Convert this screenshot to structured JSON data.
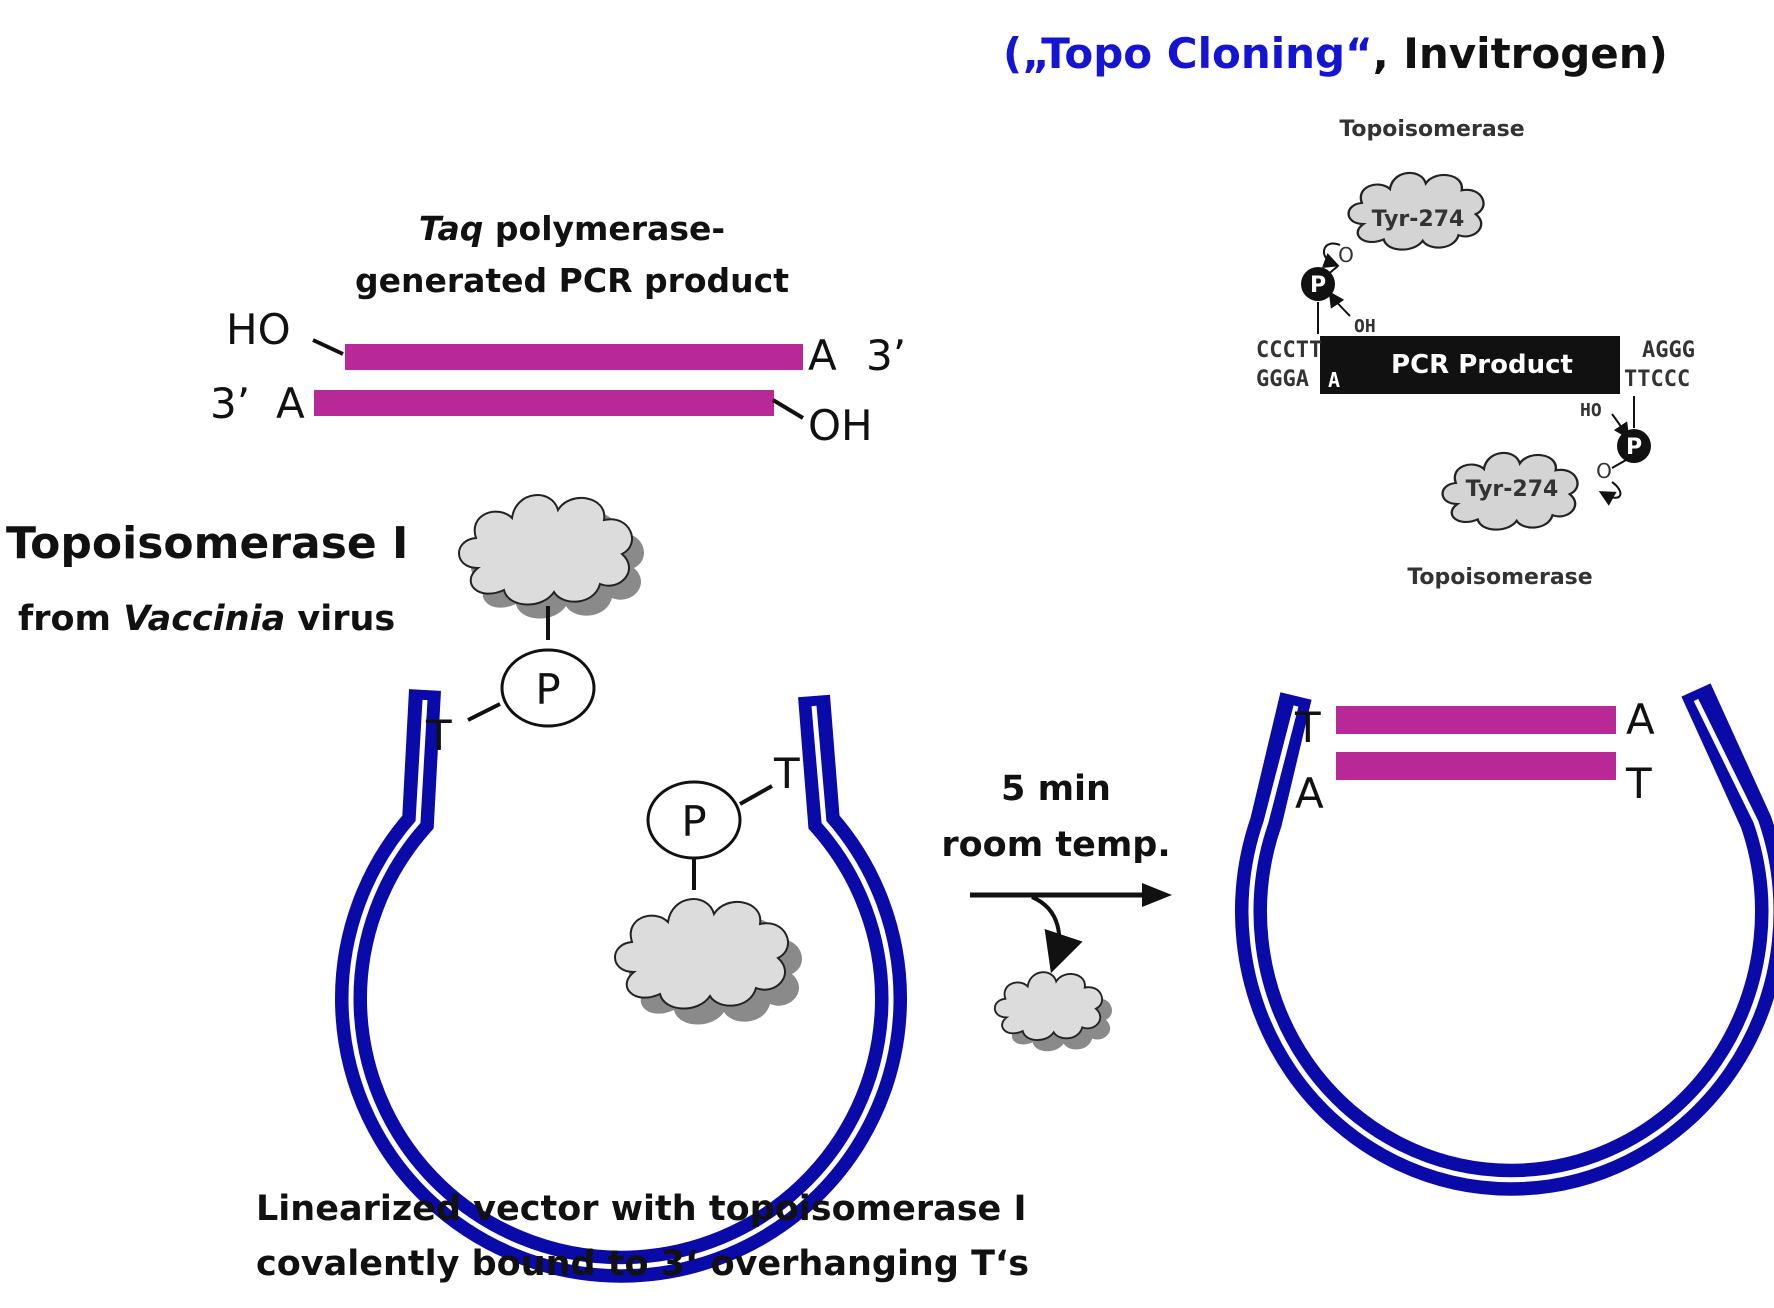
{
  "colors": {
    "vector_blue": "#0a0aa8",
    "pcr_magenta": "#b82896",
    "title_blue": "#1414d2",
    "cloud_fill": "#dcdcdc",
    "cloud_shadow": "#8a8a8a"
  },
  "title": {
    "open": "(„Topo Cloning“",
    "rest": ", Invitrogen)"
  },
  "pcr_label": {
    "italic": "Taq",
    "line1_rest": " polymerase-",
    "line2": "generated PCR product"
  },
  "pcr_ends": {
    "top_left": "HO",
    "top_right_base": "A",
    "top_right_end": "3’",
    "bottom_left_end": "3’",
    "bottom_left_base": "A",
    "bottom_right": "OH"
  },
  "enzyme_label": {
    "line1": "Topoisomerase I",
    "from": "from ",
    "italic": "Vaccinia",
    "virus": " virus"
  },
  "vector": {
    "overhang_left": "T",
    "overhang_right": "T",
    "phosphate": "P"
  },
  "reaction": {
    "line1": "5 min",
    "line2": "room temp."
  },
  "product": {
    "top_left": "T",
    "top_right": "A",
    "bottom_left": "A",
    "bottom_right": "T"
  },
  "caption": {
    "line1": "Linearized vector with topoisomerase I",
    "line2": "covalently bound to 3‘ overhanging T‘s"
  },
  "inset": {
    "topo_top": "Topoisomerase",
    "topo_bottom": "Topoisomerase",
    "tyr_top": "Tyr-274",
    "tyr_bottom": "Tyr-274",
    "o": "O",
    "oh": "OH",
    "ho": "HO",
    "p": "P",
    "left_top_seq": "CCCTT",
    "left_bottom_seq": "GGGA",
    "left_a": "A",
    "right_a": "A",
    "right_top_seq": "AGGG",
    "right_bottom_seq": "TTCCC",
    "product": "PCR Product"
  }
}
